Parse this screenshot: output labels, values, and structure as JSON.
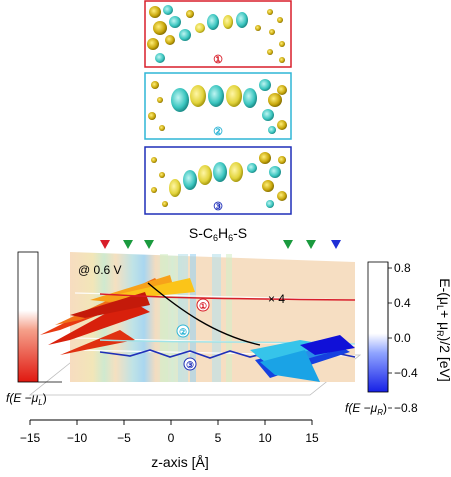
{
  "panels": [
    {
      "id": "1",
      "label": "①",
      "color": "#d81e2a"
    },
    {
      "id": "2",
      "label": "②",
      "color": "#2fb5d6"
    },
    {
      "id": "3",
      "label": "③",
      "color": "#1f2fb8"
    }
  ],
  "molecule_title": "S-C",
  "molecule_sub1": "6",
  "molecule_mid": "H",
  "molecule_sub2": "6",
  "molecule_end": "-S",
  "bias_label": "@ 0.6 V",
  "scale_label": "× 4",
  "orbital_labels": [
    "①",
    "②",
    "③"
  ],
  "fermi_left_label": "f(E −μ",
  "fermi_left_sub": "L",
  "fermi_right_label": "f(E −μ",
  "fermi_right_sub": "R",
  "right_axis_title_a": "E-(μ",
  "right_axis_title_b": "L",
  "right_axis_title_c": "+ μ",
  "right_axis_title_d": "R",
  "right_axis_title_e": ")/2 [eV]",
  "x_axis_title": "z-axis [Å]",
  "chart_data": {
    "type": "area",
    "x_ticks": [
      -15,
      -10,
      -5,
      0,
      5,
      10,
      15
    ],
    "x_range": [
      -15,
      15
    ],
    "y_ticks": [
      0.8,
      0.4,
      0.0,
      -0.4,
      -0.8
    ],
    "y_tick_labels": [
      "0.8",
      "0.4",
      "0.0",
      "−0.4",
      "−0.8"
    ],
    "y_range": [
      -0.8,
      0.8
    ],
    "markers_top": [
      {
        "color": "#d81e2a"
      },
      {
        "color": "#1a9a3e"
      },
      {
        "color": "#1a9a3e"
      },
      {
        "color": "#1a9a3e"
      },
      {
        "color": "#1a9a3e"
      },
      {
        "color": "#1f2fd6"
      }
    ]
  }
}
